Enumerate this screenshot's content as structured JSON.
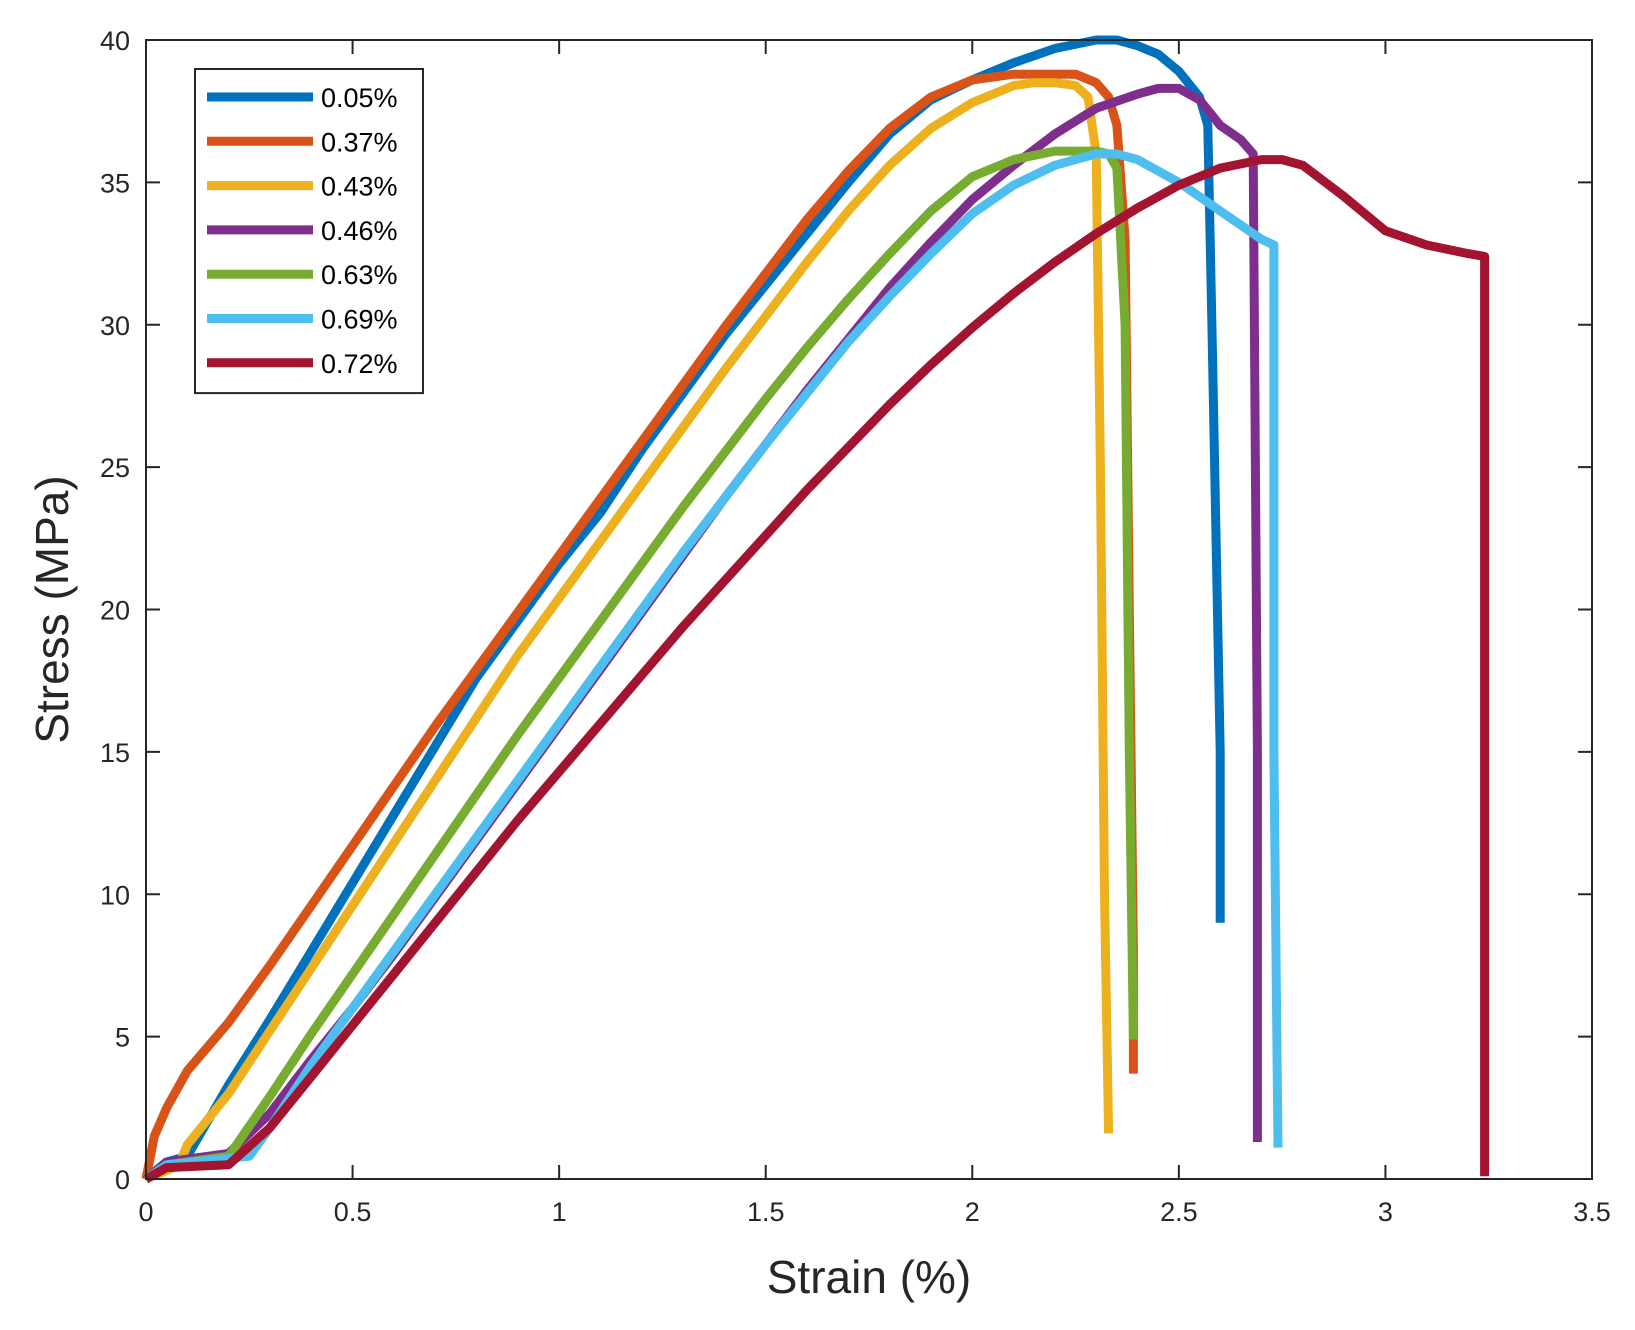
{
  "chart_data": {
    "type": "line",
    "title": "",
    "xlabel": "Strain (%)",
    "ylabel": "Stress (MPa)",
    "xlim": [
      0,
      3.5
    ],
    "ylim": [
      0,
      40
    ],
    "grid": false,
    "legend_position": "top-left",
    "x_ticks": [
      "0",
      "0.5",
      "1",
      "1.5",
      "2",
      "2.5",
      "3",
      "3.5"
    ],
    "y_ticks": [
      "0",
      "5",
      "10",
      "15",
      "20",
      "25",
      "30",
      "35",
      "40"
    ],
    "series": [
      {
        "name": "0.05%",
        "color": "#0072BD",
        "x": [
          0,
          0.05,
          0.1,
          0.2,
          0.3,
          0.4,
          0.5,
          0.6,
          0.7,
          0.8,
          0.9,
          1.0,
          1.1,
          1.2,
          1.3,
          1.4,
          1.5,
          1.6,
          1.7,
          1.8,
          1.9,
          2.0,
          2.1,
          2.2,
          2.3,
          2.35,
          2.4,
          2.45,
          2.5,
          2.55,
          2.57,
          2.58,
          2.6,
          2.6
        ],
        "y": [
          0,
          0.6,
          0.8,
          3.3,
          5.6,
          8.0,
          10.4,
          12.8,
          15.2,
          17.6,
          19.6,
          21.6,
          23.4,
          25.6,
          27.6,
          29.6,
          31.4,
          33.2,
          35.0,
          36.7,
          37.9,
          38.6,
          39.2,
          39.7,
          40.0,
          40.0,
          39.8,
          39.5,
          38.9,
          38.0,
          37.0,
          30,
          15,
          9
        ]
      },
      {
        "name": "0.37%",
        "color": "#D95319",
        "x": [
          0,
          0.02,
          0.05,
          0.1,
          0.2,
          0.3,
          0.4,
          0.5,
          0.6,
          0.7,
          0.8,
          0.9,
          1.0,
          1.1,
          1.2,
          1.3,
          1.4,
          1.5,
          1.6,
          1.7,
          1.8,
          1.9,
          2.0,
          2.1,
          2.15,
          2.2,
          2.25,
          2.3,
          2.33,
          2.35,
          2.37,
          2.38,
          2.39,
          2.39
        ],
        "y": [
          0,
          1.5,
          2.5,
          3.8,
          5.5,
          7.5,
          9.6,
          11.7,
          13.8,
          15.9,
          17.9,
          19.9,
          21.9,
          23.9,
          25.9,
          27.9,
          29.9,
          31.8,
          33.7,
          35.4,
          36.9,
          38.0,
          38.6,
          38.8,
          38.8,
          38.8,
          38.8,
          38.5,
          38.0,
          37.0,
          33.0,
          20,
          8,
          3.7
        ]
      },
      {
        "name": "0.43%",
        "color": "#EDB120",
        "x": [
          0,
          0.05,
          0.08,
          0.1,
          0.2,
          0.3,
          0.4,
          0.5,
          0.6,
          0.7,
          0.8,
          0.9,
          1.0,
          1.1,
          1.2,
          1.3,
          1.4,
          1.5,
          1.6,
          1.7,
          1.8,
          1.9,
          2.0,
          2.1,
          2.15,
          2.2,
          2.25,
          2.28,
          2.3,
          2.31,
          2.32,
          2.33
        ],
        "y": [
          0,
          0.3,
          0.5,
          1.2,
          3.0,
          5.2,
          7.4,
          9.6,
          11.8,
          14.0,
          16.2,
          18.4,
          20.4,
          22.4,
          24.4,
          26.4,
          28.4,
          30.3,
          32.2,
          34.0,
          35.6,
          36.9,
          37.8,
          38.4,
          38.5,
          38.5,
          38.4,
          38.0,
          36.0,
          25.0,
          10.0,
          1.6
        ]
      },
      {
        "name": "0.46%",
        "color": "#7E2F8E",
        "x": [
          0,
          0.05,
          0.2,
          0.3,
          0.4,
          0.5,
          0.6,
          0.7,
          0.8,
          0.9,
          1.0,
          1.1,
          1.2,
          1.3,
          1.4,
          1.5,
          1.6,
          1.7,
          1.8,
          1.9,
          2.0,
          2.1,
          2.2,
          2.3,
          2.4,
          2.45,
          2.5,
          2.55,
          2.6,
          2.65,
          2.68,
          2.69,
          2.69
        ],
        "y": [
          0,
          0.6,
          0.9,
          2.3,
          4.2,
          6.0,
          7.9,
          9.9,
          11.9,
          13.9,
          15.9,
          17.9,
          19.9,
          21.9,
          23.9,
          25.8,
          27.7,
          29.5,
          31.3,
          32.9,
          34.4,
          35.6,
          36.7,
          37.6,
          38.1,
          38.3,
          38.3,
          37.9,
          37.0,
          36.5,
          36.0,
          15.0,
          1.3
        ]
      },
      {
        "name": "0.63%",
        "color": "#77AC30",
        "x": [
          0,
          0.05,
          0.2,
          0.3,
          0.4,
          0.5,
          0.6,
          0.7,
          0.8,
          0.9,
          1.0,
          1.1,
          1.2,
          1.3,
          1.4,
          1.5,
          1.6,
          1.7,
          1.8,
          1.9,
          2.0,
          2.1,
          2.2,
          2.25,
          2.3,
          2.33,
          2.35,
          2.37,
          2.38,
          2.39
        ],
        "y": [
          0,
          0.5,
          0.8,
          2.9,
          5.1,
          7.2,
          9.3,
          11.4,
          13.5,
          15.6,
          17.6,
          19.6,
          21.6,
          23.6,
          25.5,
          27.4,
          29.2,
          30.9,
          32.5,
          34.0,
          35.2,
          35.8,
          36.1,
          36.1,
          36.1,
          36.0,
          35.5,
          30.0,
          15.0,
          4.9
        ]
      },
      {
        "name": "0.69%",
        "color": "#4DBEEE",
        "x": [
          0,
          0.05,
          0.25,
          0.3,
          0.4,
          0.5,
          0.6,
          0.7,
          0.8,
          0.9,
          1.0,
          1.1,
          1.2,
          1.3,
          1.4,
          1.5,
          1.6,
          1.7,
          1.8,
          1.9,
          2.0,
          2.1,
          2.2,
          2.3,
          2.35,
          2.4,
          2.5,
          2.6,
          2.7,
          2.73,
          2.73,
          2.74
        ],
        "y": [
          0,
          0.5,
          0.8,
          1.8,
          4.0,
          6.0,
          8.0,
          10.0,
          12.0,
          14.0,
          16.0,
          18.0,
          20.0,
          22.0,
          23.9,
          25.8,
          27.6,
          29.4,
          31.0,
          32.5,
          33.9,
          34.9,
          35.6,
          36.0,
          36.0,
          35.8,
          35.0,
          34.0,
          33.0,
          32.8,
          15.0,
          1.1
        ]
      },
      {
        "name": "0.72%",
        "color": "#A2142F",
        "x": [
          0,
          0.05,
          0.2,
          0.3,
          0.4,
          0.5,
          0.6,
          0.7,
          0.8,
          0.9,
          1.0,
          1.1,
          1.2,
          1.3,
          1.4,
          1.5,
          1.6,
          1.7,
          1.8,
          1.9,
          2.0,
          2.1,
          2.2,
          2.3,
          2.4,
          2.5,
          2.6,
          2.7,
          2.75,
          2.8,
          2.9,
          3.0,
          3.1,
          3.2,
          3.24,
          3.24
        ],
        "y": [
          0,
          0.4,
          0.5,
          1.8,
          3.6,
          5.4,
          7.2,
          9.0,
          10.8,
          12.6,
          14.3,
          16.0,
          17.7,
          19.4,
          21.0,
          22.6,
          24.2,
          25.7,
          27.2,
          28.6,
          29.9,
          31.1,
          32.2,
          33.2,
          34.1,
          34.9,
          35.5,
          35.8,
          35.8,
          35.6,
          34.5,
          33.3,
          32.8,
          32.5,
          32.4,
          0.1
        ]
      }
    ]
  }
}
